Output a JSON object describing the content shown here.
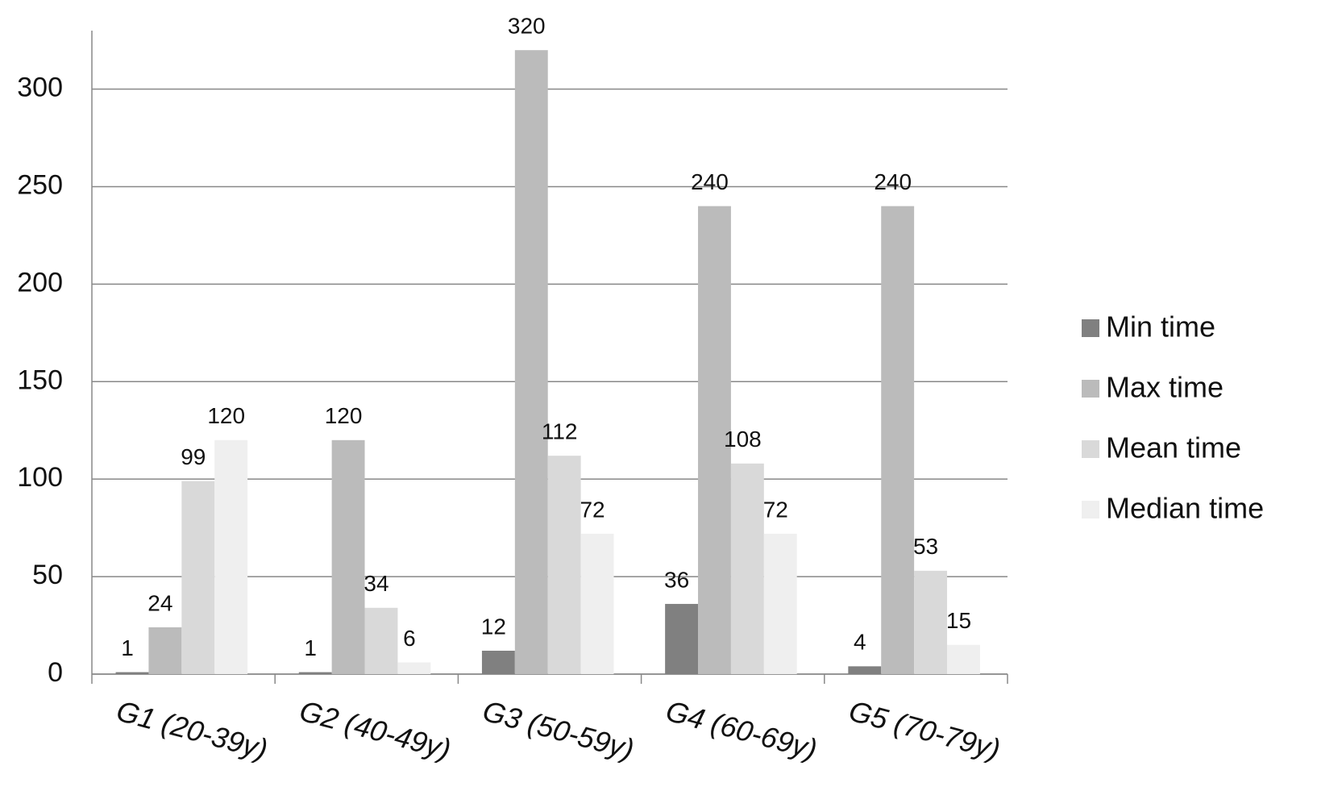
{
  "chart_data": {
    "type": "bar",
    "categories": [
      "G1 (20-39y)",
      "G2 (40-49y)",
      "G3 (50-59y)",
      "G4 (60-69y)",
      "G5 (70-79y)"
    ],
    "series": [
      {
        "name": "Min time",
        "color": "#808080",
        "values": [
          1,
          1,
          12,
          36,
          4
        ]
      },
      {
        "name": "Max time",
        "color": "#bbbbbb",
        "values": [
          24,
          120,
          320,
          240,
          240
        ]
      },
      {
        "name": "Mean time",
        "color": "#d9d9d9",
        "values": [
          99,
          34,
          112,
          108,
          53
        ]
      },
      {
        "name": "Median time",
        "color": "#efefef",
        "values": [
          120,
          6,
          72,
          72,
          15
        ]
      }
    ],
    "ylim": [
      0,
      330
    ],
    "yticks": [
      0,
      50,
      100,
      150,
      200,
      250,
      300
    ],
    "grid": true,
    "legend": "right"
  }
}
